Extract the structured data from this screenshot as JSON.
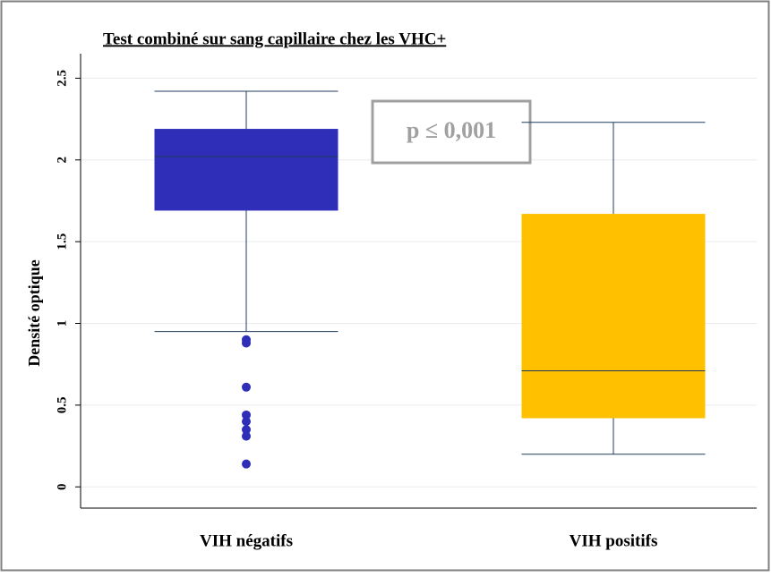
{
  "chart_data": {
    "type": "box",
    "title": "Test combiné sur sang capillaire chez les VHC+",
    "y_label": "Densité optique",
    "annotation": "p ≤ 0,001",
    "categories": [
      "VIH négatifs",
      "VIH positifs"
    ],
    "colors": [
      "#2e2eb8",
      "#ffc000"
    ],
    "boxes": [
      {
        "whislo": 0.95,
        "q1": 1.69,
        "med": 2.02,
        "q3": 2.19,
        "whishi": 2.42,
        "fliers": [
          0.9,
          0.88,
          0.61,
          0.44,
          0.4,
          0.35,
          0.31,
          0.14
        ]
      },
      {
        "whislo": 0.2,
        "q1": 0.42,
        "med": 0.71,
        "q3": 1.67,
        "whishi": 2.23,
        "fliers": []
      }
    ],
    "ylim": [
      -0.13,
      2.65
    ],
    "yticks": [
      0,
      0.5,
      1,
      1.5,
      2,
      2.5
    ],
    "grid": true
  }
}
